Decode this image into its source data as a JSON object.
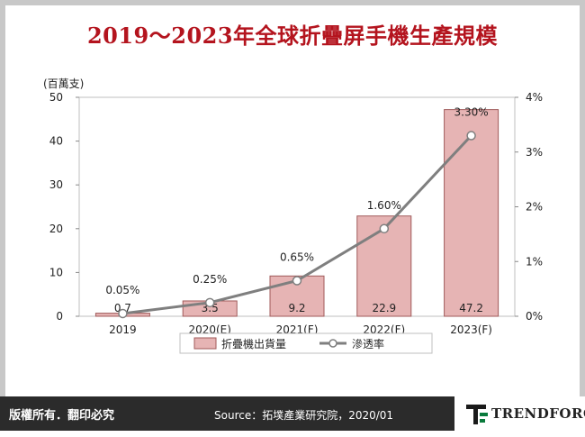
{
  "title": "2019～2023年全球折疊屏手機生產規模",
  "footer": {
    "rights": "版權所有．翻印必究",
    "source": "Source：拓墣產業研究院，2020/01",
    "logo_text": "TRENDFORCE"
  },
  "colors": {
    "title": "#b4141e",
    "bar_fill": "#e6b4b4",
    "bar_stroke": "#a05a5a",
    "line": "#7f7f7f",
    "footer_bg": "#2b2b2b"
  },
  "chart_data": {
    "type": "bar",
    "categories": [
      "2019",
      "2020(E)",
      "2021(F)",
      "2022(F)",
      "2023(F)"
    ],
    "series": [
      {
        "name": "折疊機出貨量",
        "type": "bar",
        "axis": "left",
        "values": [
          0.7,
          3.5,
          9.2,
          22.9,
          47.2
        ],
        "labels": [
          "0.7",
          "3.5",
          "9.2",
          "22.9",
          "47.2"
        ]
      },
      {
        "name": "滲透率",
        "type": "line",
        "axis": "right",
        "values": [
          0.05,
          0.25,
          0.65,
          1.6,
          3.3
        ],
        "labels": [
          "0.05%",
          "0.25%",
          "0.65%",
          "1.60%",
          "3.30%"
        ]
      }
    ],
    "y_left": {
      "label": "(百萬支)",
      "ticks": [
        "0",
        "10",
        "20",
        "30",
        "40",
        "50"
      ],
      "min": 0,
      "max": 50
    },
    "y_right": {
      "ticks": [
        "0%",
        "1%",
        "2%",
        "3%",
        "4%"
      ],
      "min": 0,
      "max": 4
    },
    "legend_position": "bottom",
    "grid": false
  }
}
